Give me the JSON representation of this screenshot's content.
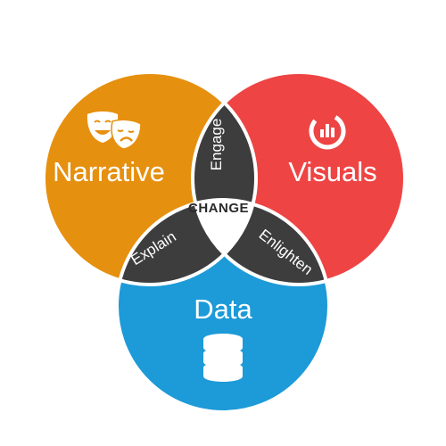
{
  "diagram": {
    "circles": {
      "narrative": {
        "label": "Narrative",
        "color": "#e6900f",
        "icon": "theater-masks-icon"
      },
      "visuals": {
        "label": "Visuals",
        "color": "#ee4444",
        "icon": "bar-chart-icon"
      },
      "data": {
        "label": "Data",
        "color": "#1d9ad8",
        "icon": "database-icon"
      }
    },
    "overlaps": {
      "narrative_visuals": "Engage",
      "narrative_data": "Explain",
      "visuals_data": "Enlighten"
    },
    "center": "CHANGE",
    "overlap_color": "#3d3d3d",
    "outline_color": "#ffffff"
  }
}
